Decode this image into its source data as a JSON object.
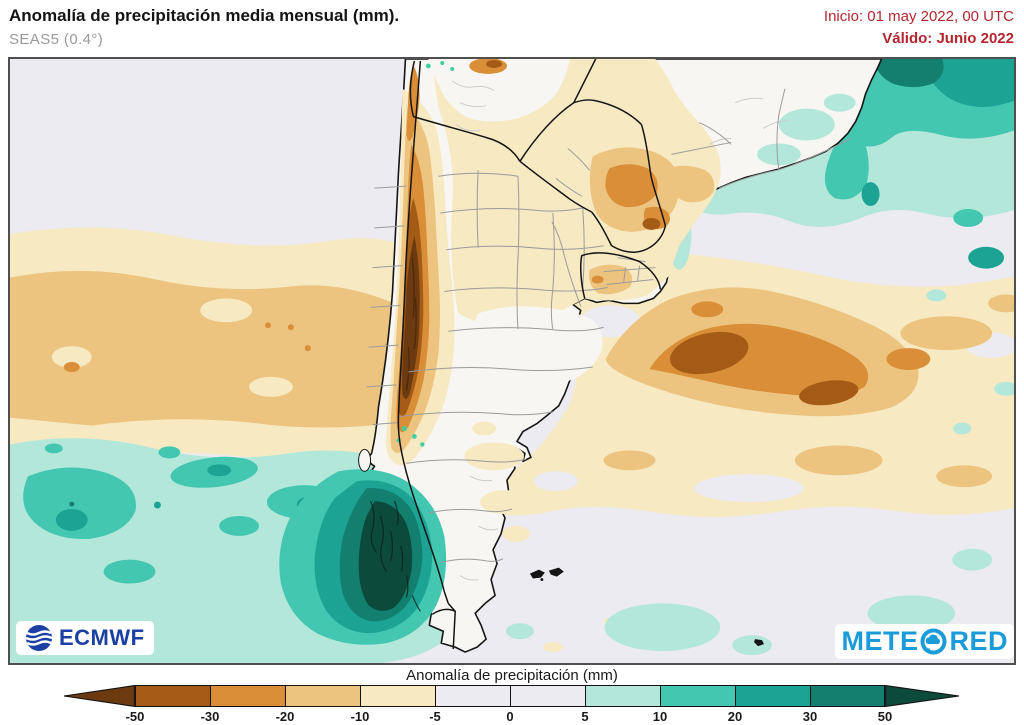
{
  "header": {
    "title": "Anomalía de precipitación media mensual (mm).",
    "subtitle": "SEAS5 (0.4°)",
    "init_label": "Inicio: 01 may 2022, 00 UTC",
    "valid_label": "Válido: Junio 2022",
    "accent_color": "#b3262f"
  },
  "legend": {
    "title": "Anomalía de precipitación (mm)",
    "ticks": [
      "-50",
      "-30",
      "-20",
      "-10",
      "-5",
      "0",
      "5",
      "10",
      "20",
      "30",
      "50"
    ],
    "segment_colors": [
      "#a45b16",
      "#d98e37",
      "#ecc47f",
      "#f7e9c2",
      "#ebebf1",
      "#ebebf1",
      "#b3e7d9",
      "#43c7b1",
      "#1ca394",
      "#13806f"
    ],
    "arrow_left_color": "#6b3a10",
    "arrow_right_color": "#0c4b3c"
  },
  "palette": {
    "below_m50": "#6b3a10",
    "m50_m30": "#a45b16",
    "m30_m20": "#d98e37",
    "m20_m10": "#ecc47f",
    "m10_m5": "#f7e9c2",
    "near_zero_ocean": "#ebebf1",
    "near_zero_land": "#f7f6f3",
    "p5_p10": "#b3e7d9",
    "p10_p20": "#43c7b1",
    "p20_p30": "#1ca394",
    "p30_p50": "#13806f",
    "above_p50": "#0c4b3c",
    "mint_fleck": "#3fd0a0",
    "border_country": "#141414",
    "border_province": "#9b9b9b",
    "relief": "#cccccc",
    "frame": "#4f4f4f"
  },
  "logos": {
    "ecmwf_text": "ECMWF",
    "ecmwf_color": "#1c3fa4",
    "meteored_full": "METEORED",
    "meteored_left": "METE",
    "meteored_right": "RED",
    "meteored_color": "#1b9bd8"
  }
}
